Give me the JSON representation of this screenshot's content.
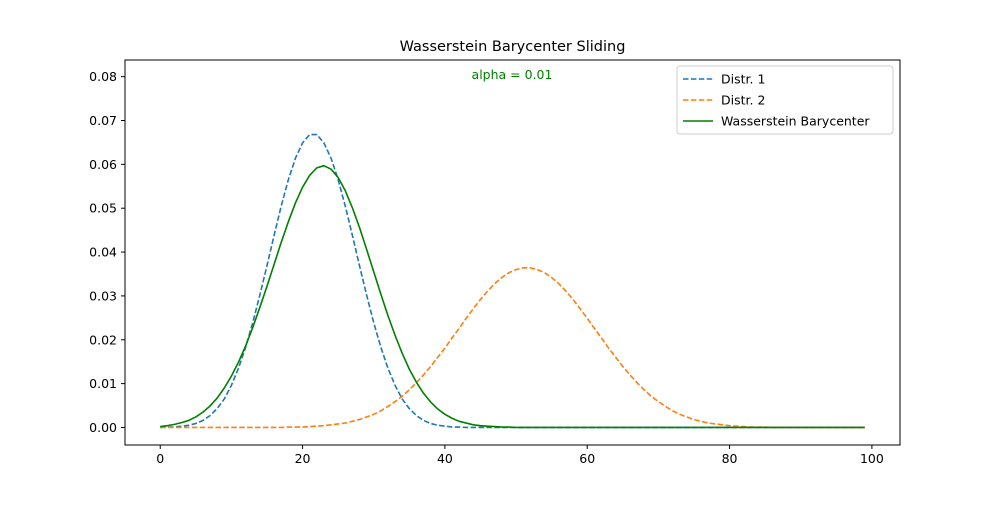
{
  "chart_data": {
    "type": "line",
    "title": "Wasserstein Barycenter Sliding",
    "annotation": {
      "text": "alpha = 0.01",
      "color": "#008000"
    },
    "xlabel": "",
    "ylabel": "",
    "xlim": [
      -4.95,
      103.95
    ],
    "ylim": [
      -0.004,
      0.0838
    ],
    "xticks": [
      0,
      20,
      40,
      60,
      80,
      100
    ],
    "xtick_labels": [
      "0",
      "20",
      "40",
      "60",
      "80",
      "100"
    ],
    "yticks": [
      0.0,
      0.01,
      0.02,
      0.03,
      0.04,
      0.05,
      0.06,
      0.07,
      0.08
    ],
    "ytick_labels": [
      "0.00",
      "0.01",
      "0.02",
      "0.03",
      "0.04",
      "0.05",
      "0.06",
      "0.07",
      "0.08"
    ],
    "grid": false,
    "legend_position": "top-right",
    "x": [
      0,
      1,
      2,
      3,
      4,
      5,
      6,
      7,
      8,
      9,
      10,
      11,
      12,
      13,
      14,
      15,
      16,
      17,
      18,
      19,
      20,
      21,
      22,
      23,
      24,
      25,
      26,
      27,
      28,
      29,
      30,
      31,
      32,
      33,
      34,
      35,
      36,
      37,
      38,
      39,
      40,
      41,
      42,
      43,
      44,
      45,
      46,
      47,
      48,
      49,
      50,
      51,
      52,
      53,
      54,
      55,
      56,
      57,
      58,
      59,
      60,
      61,
      62,
      63,
      64,
      65,
      66,
      67,
      68,
      69,
      70,
      71,
      72,
      73,
      74,
      75,
      76,
      77,
      78,
      79,
      80,
      81,
      82,
      83,
      84,
      85,
      86,
      87,
      88,
      89,
      90,
      91,
      92,
      93,
      94,
      95,
      96,
      97,
      98,
      99
    ],
    "series": [
      {
        "name": "Distr. 1",
        "color": "#1f77b4",
        "style": "dashed",
        "values": [
          0.0,
          0.0001,
          0.0001,
          0.0003,
          0.0005,
          0.0009,
          0.0016,
          0.0027,
          0.0043,
          0.0065,
          0.0096,
          0.0135,
          0.0183,
          0.0239,
          0.0302,
          0.0369,
          0.0438,
          0.0505,
          0.0565,
          0.0614,
          0.0649,
          0.0668,
          0.0668,
          0.0649,
          0.0614,
          0.0565,
          0.0505,
          0.0438,
          0.0369,
          0.0302,
          0.0239,
          0.0183,
          0.0135,
          0.0096,
          0.0065,
          0.0043,
          0.0027,
          0.0016,
          0.0009,
          0.0005,
          0.0003,
          0.0001,
          0.0001,
          0.0,
          0.0,
          0.0,
          0.0,
          0.0,
          0.0,
          0.0,
          0.0,
          0.0,
          0.0,
          0.0,
          0.0,
          0.0,
          0.0,
          0.0,
          0.0,
          0.0,
          0.0,
          0.0,
          0.0,
          0.0,
          0.0,
          0.0,
          0.0,
          0.0,
          0.0,
          0.0,
          0.0,
          0.0,
          0.0,
          0.0,
          0.0,
          0.0,
          0.0,
          0.0,
          0.0,
          0.0,
          0.0,
          0.0,
          0.0,
          0.0,
          0.0,
          0.0,
          0.0,
          0.0,
          0.0,
          0.0,
          0.0,
          0.0,
          0.0,
          0.0,
          0.0,
          0.0,
          0.0,
          0.0,
          0.0,
          0.0
        ]
      },
      {
        "name": "Distr. 2",
        "color": "#ff7f0e",
        "style": "dashed",
        "values": [
          0.0,
          0.0,
          0.0,
          0.0,
          0.0,
          0.0,
          0.0,
          0.0,
          0.0,
          0.0,
          0.0,
          0.0,
          0.0,
          0.0,
          0.0,
          0.0,
          0.0,
          0.0,
          0.0001,
          0.0001,
          0.0001,
          0.0002,
          0.0003,
          0.0004,
          0.0006,
          0.0008,
          0.001,
          0.0014,
          0.0018,
          0.0024,
          0.003,
          0.0038,
          0.0048,
          0.0059,
          0.0071,
          0.0086,
          0.0102,
          0.012,
          0.0139,
          0.016,
          0.0181,
          0.0204,
          0.0226,
          0.0249,
          0.0271,
          0.0292,
          0.0311,
          0.0328,
          0.0342,
          0.0353,
          0.036,
          0.0364,
          0.0364,
          0.036,
          0.0353,
          0.0342,
          0.0328,
          0.0311,
          0.0292,
          0.0271,
          0.0249,
          0.0226,
          0.0204,
          0.0181,
          0.016,
          0.0139,
          0.012,
          0.0102,
          0.0086,
          0.0071,
          0.0059,
          0.0048,
          0.0038,
          0.003,
          0.0024,
          0.0018,
          0.0014,
          0.001,
          0.0008,
          0.0006,
          0.0004,
          0.0003,
          0.0002,
          0.0001,
          0.0001,
          0.0001,
          0.0,
          0.0,
          0.0,
          0.0,
          0.0,
          0.0,
          0.0,
          0.0,
          0.0,
          0.0,
          0.0,
          0.0,
          0.0,
          0.0
        ]
      },
      {
        "name": "Wasserstein Barycenter",
        "color": "#008000",
        "style": "solid",
        "values": [
          0.0002,
          0.0004,
          0.0007,
          0.0011,
          0.0016,
          0.0024,
          0.0035,
          0.0049,
          0.0067,
          0.009,
          0.0117,
          0.0149,
          0.0186,
          0.0228,
          0.0274,
          0.0322,
          0.0372,
          0.0422,
          0.0469,
          0.0512,
          0.0548,
          0.0575,
          0.0592,
          0.0597,
          0.0589,
          0.057,
          0.054,
          0.0501,
          0.0456,
          0.0406,
          0.0355,
          0.0304,
          0.0255,
          0.021,
          0.0169,
          0.0133,
          0.0103,
          0.0078,
          0.0058,
          0.0042,
          0.003,
          0.0021,
          0.0014,
          0.001,
          0.0006,
          0.0004,
          0.0003,
          0.0002,
          0.0001,
          0.0001,
          0.0,
          0.0,
          0.0,
          0.0,
          0.0,
          0.0,
          0.0,
          0.0,
          0.0,
          0.0,
          0.0,
          0.0,
          0.0,
          0.0,
          0.0,
          0.0,
          0.0,
          0.0,
          0.0,
          0.0,
          0.0,
          0.0,
          0.0,
          0.0,
          0.0,
          0.0,
          0.0,
          0.0,
          0.0,
          0.0,
          0.0,
          0.0,
          0.0,
          0.0,
          0.0,
          0.0,
          0.0,
          0.0,
          0.0,
          0.0,
          0.0,
          0.0,
          0.0,
          0.0,
          0.0,
          0.0,
          0.0,
          0.0,
          0.0,
          0.0
        ]
      }
    ]
  }
}
